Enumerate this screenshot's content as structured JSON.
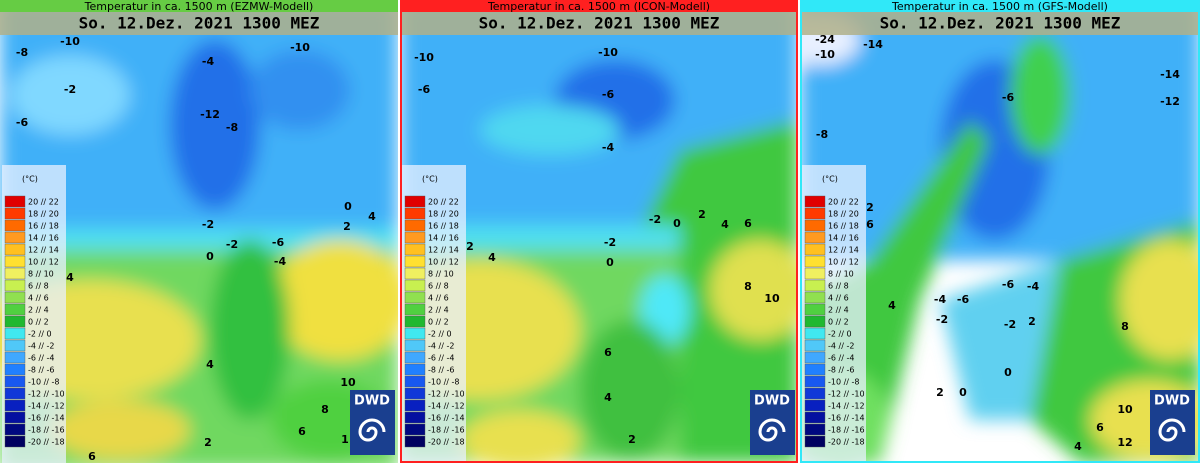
{
  "panels": [
    {
      "title": "Temperatur in ca. 1500 m (EZMW-Modell)",
      "date": "So. 12.Dez. 2021 1300 MEZ",
      "labels": [
        -10,
        -10,
        -8,
        -4,
        -2,
        -6,
        -12,
        -8,
        0,
        4,
        -2,
        2,
        -2,
        -6,
        0,
        -4,
        4,
        4,
        10,
        8,
        6,
        2,
        6,
        1
      ]
    },
    {
      "title": "Temperatur in ca. 1500 m (ICON-Modell)",
      "date": "So. 12.Dez. 2021 1300 MEZ",
      "labels": [
        -10,
        -10,
        -6,
        -6,
        -4,
        -2,
        0,
        2,
        4,
        6,
        -2,
        2,
        4,
        0,
        8,
        10,
        6,
        4,
        2
      ]
    },
    {
      "title": "Temperatur in ca. 1500 m (GFS-Modell)",
      "date": "So. 12.Dez. 2021 1300 MEZ",
      "labels": [
        -24,
        -14,
        -10,
        -14,
        -12,
        -8,
        -6,
        2,
        6,
        4,
        -4,
        -6,
        -2,
        -6,
        -4,
        -2,
        2,
        8,
        0,
        2,
        0,
        10,
        6,
        4,
        12
      ]
    }
  ],
  "legend": {
    "title": "(°C)",
    "entries": [
      "20 // 22",
      "18 // 20",
      "16 // 18",
      "14 // 16",
      "12 // 14",
      "10 // 12",
      "8 // 10",
      "6 // 8",
      "4 // 6",
      "2 // 4",
      "0 // 2",
      "-2 // 0",
      "-4 // -2",
      "-6 // -4",
      "-8 // -6",
      "-10 // -8",
      "-12 // -10",
      "-14 // -12",
      "-16 // -14",
      "-18 // -16",
      "-20 // -18"
    ]
  },
  "logo": "DWD"
}
